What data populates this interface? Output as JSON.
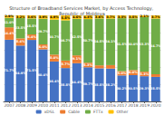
{
  "chart_data": {
    "type": "bar",
    "title": "Structure of Broadband Services Market, by Access Technology, Republic of Moldova",
    "categories": [
      "2007",
      "2008",
      "2009",
      "2010",
      "2011",
      "2012",
      "2013",
      "2014",
      "2015",
      "2016",
      "2017",
      "2018",
      "2019",
      "2020"
    ],
    "series": [
      {
        "name": "xDSL",
        "color": "#4472c4",
        "values": [
          71.7,
          64.9,
          71.5,
          60.4,
          46.4,
          38.8,
          44.4,
          39.7,
          38.5,
          38.2,
          30.2,
          30.5,
          29.3,
          28.5
        ],
        "value_labels": [
          "71.7%",
          "64.9%",
          "71.5%",
          "60.4%",
          "46.4%",
          "38.8%",
          "44.4%",
          "39.7%",
          "38.5%",
          "38.2%",
          "30.2%",
          "30.5%",
          "29.3%",
          "28.5%"
        ]
      },
      {
        "name": "Cable",
        "color": "#ed7d31",
        "values": [
          14.4,
          8.4,
          6.4,
          6.0,
          8.0,
          8.7,
          9.1,
          5.3,
          3.4,
          4.0,
          5.0,
          6.0,
          5.3,
          3.1
        ],
        "value_labels": [
          "14.4%",
          "8.4%",
          "6.4%",
          "6.0%",
          "8.0%",
          "8.7%",
          "9.1%",
          "5.3%",
          null,
          null,
          "5.0%",
          "6.0%",
          "5.3%",
          null
        ]
      },
      {
        "name": "FTTx",
        "color": "#70ad47",
        "values": [
          11.0,
          23.5,
          18.5,
          29.7,
          40.7,
          46.7,
          42.5,
          50.7,
          54.5,
          54.1,
          61.5,
          60.0,
          63.3,
          64.7
        ],
        "value_labels": [
          "11.0%",
          "23.5%",
          "18.5%",
          "29.7%",
          "40.7%",
          "46.7%",
          "42.5%",
          "50.7%",
          "54.5%",
          "54.1%",
          "61.5%",
          "60.0%",
          "63.3%",
          "64.7%"
        ]
      },
      {
        "name": "Other",
        "color": "#ffc000",
        "values": [
          2.9,
          3.2,
          3.6,
          3.9,
          4.9,
          5.8,
          4.0,
          4.3,
          3.6,
          3.7,
          3.3,
          3.5,
          2.1,
          3.7
        ],
        "value_labels": [
          "2.9%",
          "3.2%",
          "3.6%",
          "3.9%",
          "4.9%",
          "5.8%",
          "4.0%",
          "4.3%",
          "3.6%",
          "3.7%",
          "3.3%",
          "3.5%",
          "2.1%",
          "3.7%"
        ]
      }
    ],
    "stacked": true,
    "data_labels": true,
    "ylim": [
      0,
      100
    ],
    "yticks": [
      0,
      20,
      40,
      60,
      80,
      100
    ],
    "grid": true,
    "tick_labels": "x",
    "legend": "bottom"
  }
}
